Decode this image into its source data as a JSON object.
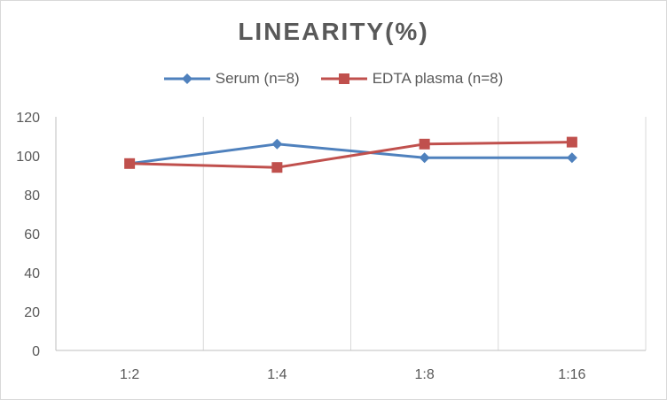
{
  "chart_data": {
    "type": "line",
    "title": "LINEARITY(%)",
    "categories": [
      "1:2",
      "1:4",
      "1:8",
      "1:16"
    ],
    "series": [
      {
        "name": "Serum (n=8)",
        "values": [
          96,
          106,
          99,
          99
        ],
        "color": "#4f81bd",
        "marker": "diamond"
      },
      {
        "name": "EDTA plasma (n=8)",
        "values": [
          96,
          94,
          106,
          107
        ],
        "color": "#c0504d",
        "marker": "square"
      }
    ],
    "xlabel": "",
    "ylabel": "",
    "ylim": [
      0,
      120
    ],
    "yticks": [
      0,
      20,
      40,
      60,
      80,
      100,
      120
    ],
    "grid": "vertical",
    "legend_position": "top"
  }
}
